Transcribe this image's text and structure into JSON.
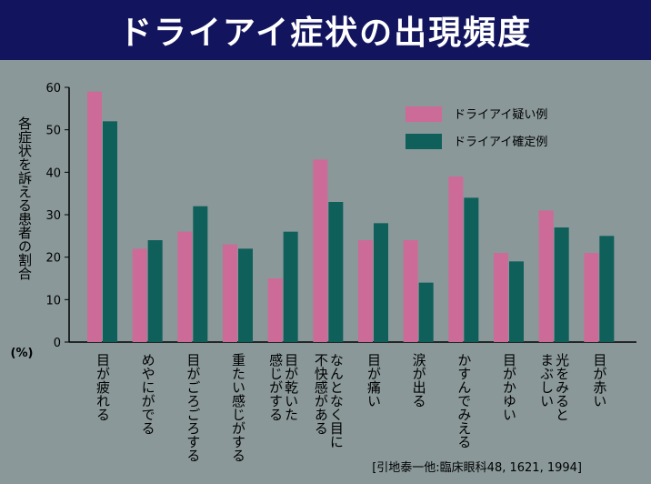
{
  "header": {
    "title": "ドライアイ症状の出現頻度"
  },
  "colors": {
    "title_bar": "#12145e",
    "background": "#8a9899",
    "series_suspected": "#cc6b97",
    "series_confirmed": "#0f5f5a"
  },
  "chart_data": {
    "type": "bar",
    "ylabel": "各症状を訴える患者の割合",
    "ylabel_unit": "(%)",
    "ylim": [
      0,
      60
    ],
    "yticks": [
      "0",
      "10",
      "20",
      "30",
      "40",
      "50",
      "60"
    ],
    "categories": [
      [
        "目が疲れる"
      ],
      [
        "めやにがでる"
      ],
      [
        "目がごろごろする"
      ],
      [
        "重たい感じがする"
      ],
      [
        "目が乾いた",
        "感じがする"
      ],
      [
        "なんとなく目に",
        "不快感がある"
      ],
      [
        "目が痛い"
      ],
      [
        "涙が出る"
      ],
      [
        "かすんでみえる"
      ],
      [
        "目がかゆい"
      ],
      [
        "光をみると",
        "まぶしい"
      ],
      [
        "目が赤い"
      ]
    ],
    "series": [
      {
        "name": "ドライアイ疑い例",
        "values": [
          59,
          22,
          26,
          23,
          15,
          43,
          24,
          24,
          39,
          21,
          31,
          21
        ]
      },
      {
        "name": "ドライアイ確定例",
        "values": [
          52,
          24,
          32,
          22,
          26,
          33,
          28,
          14,
          34,
          19,
          27,
          25
        ]
      }
    ],
    "legend_position": "top-right",
    "grid": false,
    "citation": "[引地泰一他:臨床眼科48, 1621, 1994]"
  }
}
